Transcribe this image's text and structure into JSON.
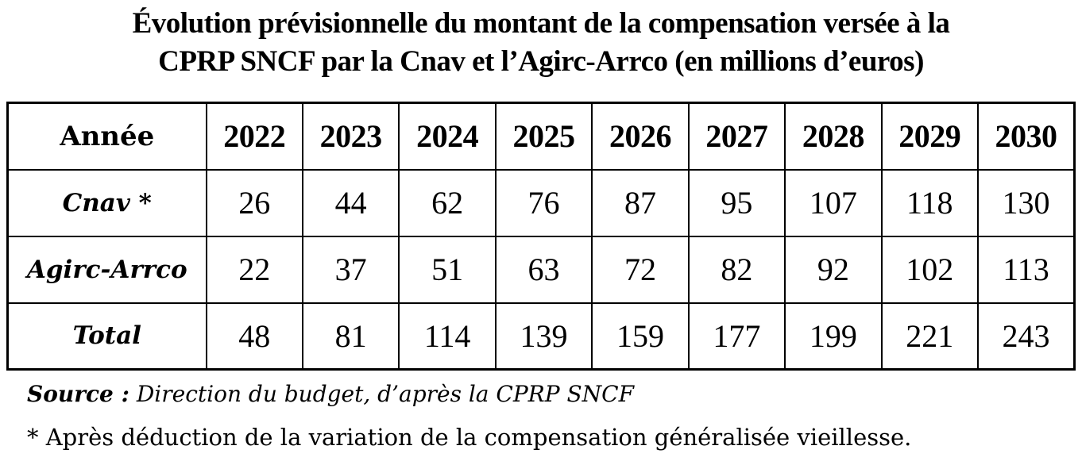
{
  "title": {
    "line1": "Évolution prévisionnelle du montant de la compensation versée à la",
    "line2": "CPRP SNCF par la Cnav et l’Agirc-Arrco (en millions d’euros)"
  },
  "chart_data": {
    "type": "table",
    "title": "Évolution prévisionnelle du montant de la compensation versée à la CPRP SNCF par la Cnav et l’Agirc-Arrco (en millions d’euros)",
    "unit": "millions d’euros",
    "row_header": "Année",
    "categories": [
      "2022",
      "2023",
      "2024",
      "2025",
      "2026",
      "2027",
      "2028",
      "2029",
      "2030"
    ],
    "series": [
      {
        "name": "Cnav *",
        "values": [
          26,
          44,
          62,
          76,
          87,
          95,
          107,
          118,
          130
        ]
      },
      {
        "name": "Agirc-Arrco",
        "values": [
          22,
          37,
          51,
          63,
          72,
          82,
          92,
          102,
          113
        ]
      },
      {
        "name": "Total",
        "values": [
          48,
          81,
          114,
          139,
          159,
          177,
          199,
          221,
          243
        ]
      }
    ]
  },
  "source": {
    "label": "Source :",
    "text": " Direction du budget, d’après la CPRP SNCF"
  },
  "footnote": "* Après déduction de la variation de la compensation généralisée vieillesse.",
  "colors": {
    "text": "#000000",
    "background": "#ffffff",
    "border": "#000000"
  }
}
